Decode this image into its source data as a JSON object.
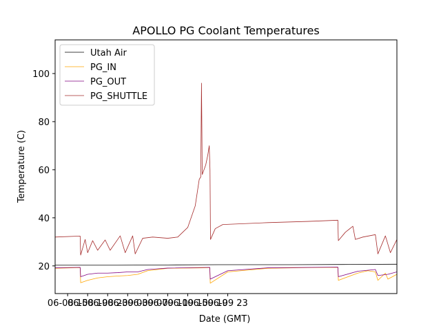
{
  "chart_data": {
    "type": "line",
    "title": "APOLLO PG Coolant Temperatures",
    "xlabel": "Date (GMT)",
    "ylabel": "Temperature (C)",
    "x_range_hours": [
      -2.5,
      65.8
    ],
    "ylim": [
      8.5,
      114
    ],
    "x_ticks": [
      {
        "label": "06-08 15",
        "hour": 0
      },
      {
        "label": "06-08 19",
        "hour": 4
      },
      {
        "label": "06-08 23",
        "hour": 8
      },
      {
        "label": "06-09 03",
        "hour": 12
      },
      {
        "label": "06-09 07",
        "hour": 16
      },
      {
        "label": "06-09 11",
        "hour": 20
      },
      {
        "label": "06-09 15",
        "hour": 24
      },
      {
        "label": "06-09 19",
        "hour": 28
      },
      {
        "label": "06-09 23",
        "hour": 32
      }
    ],
    "y_ticks": [
      20,
      40,
      60,
      80,
      100
    ],
    "grid": false,
    "legend_position": "top-left",
    "series": [
      {
        "name": "Utah Air",
        "color": "#000000",
        "points": [
          [
            -2.5,
            20.3
          ],
          [
            10,
            20.3
          ],
          [
            20,
            20.4
          ],
          [
            30,
            20.5
          ],
          [
            45,
            20.5
          ],
          [
            55,
            20.6
          ],
          [
            65.8,
            20.7
          ]
        ]
      },
      {
        "name": "PG_IN",
        "color": "#ffa500",
        "points": [
          [
            -2.5,
            19.0
          ],
          [
            2.5,
            19.3
          ],
          [
            2.6,
            13.0
          ],
          [
            4,
            14.0
          ],
          [
            6,
            15.0
          ],
          [
            8,
            15.5
          ],
          [
            10,
            15.8
          ],
          [
            12,
            16.0
          ],
          [
            14,
            16.5
          ],
          [
            16,
            18.0
          ],
          [
            18,
            18.5
          ],
          [
            20,
            19.0
          ],
          [
            27,
            19.2
          ],
          [
            28.4,
            19.3
          ],
          [
            28.5,
            12.8
          ],
          [
            32,
            17.5
          ],
          [
            40,
            19.0
          ],
          [
            48,
            19.3
          ],
          [
            54,
            19.4
          ],
          [
            54.1,
            14.0
          ],
          [
            58,
            17.0
          ],
          [
            60,
            18.0
          ],
          [
            61.5,
            17.5
          ],
          [
            62,
            14.0
          ],
          [
            63.5,
            17.0
          ],
          [
            64,
            14.5
          ],
          [
            65.8,
            16.5
          ]
        ]
      },
      {
        "name": "PG_OUT",
        "color": "#800080",
        "points": [
          [
            -2.5,
            19.2
          ],
          [
            2.5,
            19.4
          ],
          [
            2.6,
            15.5
          ],
          [
            4,
            16.5
          ],
          [
            6,
            17.0
          ],
          [
            8,
            17.0
          ],
          [
            10,
            17.2
          ],
          [
            12,
            17.5
          ],
          [
            14,
            17.5
          ],
          [
            16,
            18.5
          ],
          [
            18,
            18.8
          ],
          [
            20,
            19.1
          ],
          [
            28.4,
            19.4
          ],
          [
            28.5,
            14.5
          ],
          [
            32,
            18.0
          ],
          [
            40,
            19.2
          ],
          [
            54,
            19.5
          ],
          [
            54.1,
            15.5
          ],
          [
            58,
            17.8
          ],
          [
            61.5,
            18.5
          ],
          [
            62,
            16.0
          ],
          [
            64,
            16.5
          ],
          [
            65.8,
            17.5
          ]
        ]
      },
      {
        "name": "PG_SHUTTLE",
        "color": "#a52a2a",
        "points": [
          [
            -2.5,
            32.0
          ],
          [
            2.5,
            32.4
          ],
          [
            2.6,
            24.5
          ],
          [
            3.5,
            31.0
          ],
          [
            4.0,
            25.5
          ],
          [
            5.0,
            30.5
          ],
          [
            6.0,
            26.5
          ],
          [
            7.5,
            30.8
          ],
          [
            8.5,
            26.5
          ],
          [
            10.5,
            32.5
          ],
          [
            11.5,
            25.5
          ],
          [
            13.0,
            32.5
          ],
          [
            13.5,
            25.0
          ],
          [
            15.0,
            31.5
          ],
          [
            17.0,
            32.0
          ],
          [
            20.0,
            31.5
          ],
          [
            22.0,
            32.0
          ],
          [
            24.0,
            36.0
          ],
          [
            25.5,
            45.0
          ],
          [
            26.3,
            56.0
          ],
          [
            26.6,
            57.0
          ],
          [
            26.75,
            96.0
          ],
          [
            26.9,
            58.0
          ],
          [
            27.6,
            62.0
          ],
          [
            28.0,
            66.0
          ],
          [
            28.3,
            70.0
          ],
          [
            28.45,
            60.0
          ],
          [
            28.55,
            31.0
          ],
          [
            29.5,
            35.5
          ],
          [
            31.0,
            37.2
          ],
          [
            40.0,
            38.0
          ],
          [
            48.0,
            38.5
          ],
          [
            54.0,
            39.0
          ],
          [
            54.1,
            30.5
          ],
          [
            55.5,
            34.0
          ],
          [
            57.0,
            36.5
          ],
          [
            57.5,
            31.0
          ],
          [
            59.0,
            32.0
          ],
          [
            61.5,
            33.0
          ],
          [
            62.0,
            25.0
          ],
          [
            63.5,
            32.5
          ],
          [
            64.5,
            25.5
          ],
          [
            65.8,
            31.0
          ]
        ]
      }
    ]
  }
}
